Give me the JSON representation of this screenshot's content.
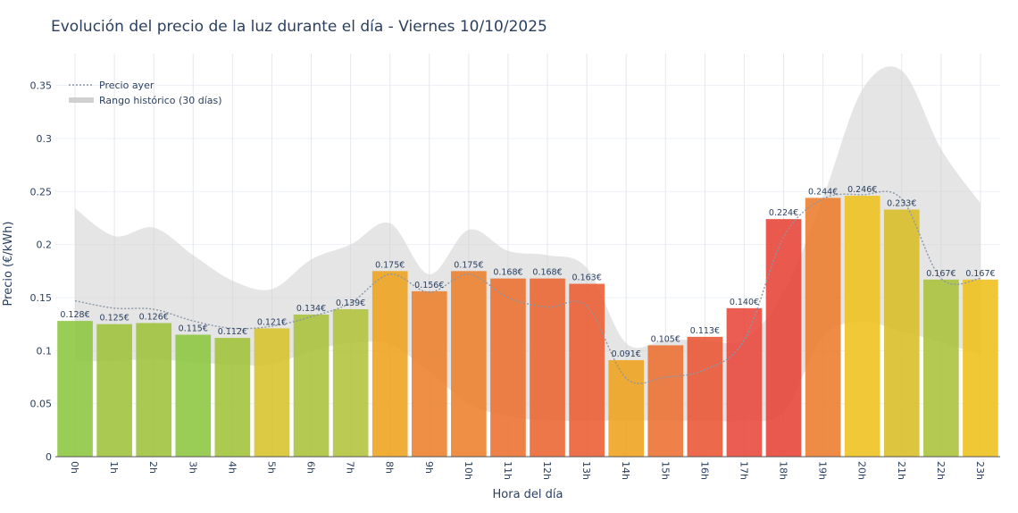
{
  "chart_data": {
    "type": "bar",
    "title": "Evolución del precio de la luz durante el día - Viernes 10/10/2025",
    "xlabel": "Hora del día",
    "ylabel": "Precio (€/kWh)",
    "ylim": [
      0,
      0.38
    ],
    "yticks": [
      0,
      0.05,
      0.1,
      0.15,
      0.2,
      0.25,
      0.3,
      0.35
    ],
    "ytick_labels": [
      "0",
      "0.05",
      "0.1",
      "0.15",
      "0.2",
      "0.25",
      "0.3",
      "0.35"
    ],
    "grid": true,
    "legend_position": "top-left",
    "categories": [
      "0h",
      "1h",
      "2h",
      "3h",
      "4h",
      "5h",
      "6h",
      "7h",
      "8h",
      "9h",
      "10h",
      "11h",
      "12h",
      "13h",
      "14h",
      "15h",
      "16h",
      "17h",
      "18h",
      "19h",
      "20h",
      "21h",
      "22h",
      "23h"
    ],
    "series": [
      {
        "type": "bar",
        "values": [
          0.128,
          0.125,
          0.126,
          0.115,
          0.112,
          0.121,
          0.134,
          0.139,
          0.175,
          0.156,
          0.175,
          0.168,
          0.168,
          0.163,
          0.091,
          0.105,
          0.113,
          0.14,
          0.224,
          0.244,
          0.246,
          0.233,
          0.167,
          0.167
        ],
        "labels": [
          "0.128€",
          "0.125€",
          "0.126€",
          "0.115€",
          "0.112€",
          "0.121€",
          "0.134€",
          "0.139€",
          "0.175€",
          "0.156€",
          "0.175€",
          "0.168€",
          "0.168€",
          "0.163€",
          "0.091€",
          "0.105€",
          "0.113€",
          "0.140€",
          "0.224€",
          "0.244€",
          "0.246€",
          "0.233€",
          "0.167€",
          "0.167€"
        ],
        "colors": [
          "#8cc63f",
          "#9ec23a",
          "#9dc23a",
          "#8cc63f",
          "#a0c13a",
          "#d7c12a",
          "#a8c23a",
          "#b0c33a",
          "#eea21b",
          "#ec7f2b",
          "#ed7f2c",
          "#ec6f2e",
          "#ec6430",
          "#ea5c31",
          "#eea21b",
          "#ec7030",
          "#e95532",
          "#e8453a",
          "#e64236",
          "#ec7b2b",
          "#efc11c",
          "#d9bd24",
          "#a8c23a",
          "#eec01a"
        ]
      },
      {
        "type": "line",
        "name": "Precio ayer",
        "color": "#8a96a6",
        "values": [
          0.147,
          0.14,
          0.139,
          0.128,
          0.121,
          0.123,
          0.132,
          0.145,
          0.172,
          0.155,
          0.172,
          0.15,
          0.141,
          0.142,
          0.074,
          0.075,
          0.082,
          0.11,
          0.207,
          0.243,
          0.247,
          0.243,
          0.168,
          0.168
        ]
      },
      {
        "type": "area",
        "name": "Rango histórico (30 días)",
        "color": "#d0d0d0",
        "upper": [
          0.234,
          0.208,
          0.216,
          0.19,
          0.166,
          0.158,
          0.186,
          0.2,
          0.22,
          0.172,
          0.214,
          0.194,
          0.19,
          0.178,
          0.107,
          0.11,
          0.11,
          0.11,
          0.155,
          0.244,
          0.346,
          0.364,
          0.29,
          0.239
        ],
        "lower": [
          0.09,
          0.09,
          0.092,
          0.089,
          0.087,
          0.087,
          0.1,
          0.107,
          0.106,
          0.08,
          0.05,
          0.038,
          0.034,
          0.034,
          0.034,
          0.034,
          0.034,
          0.034,
          0.042,
          0.113,
          0.127,
          0.118,
          0.108,
          0.096
        ]
      }
    ]
  }
}
